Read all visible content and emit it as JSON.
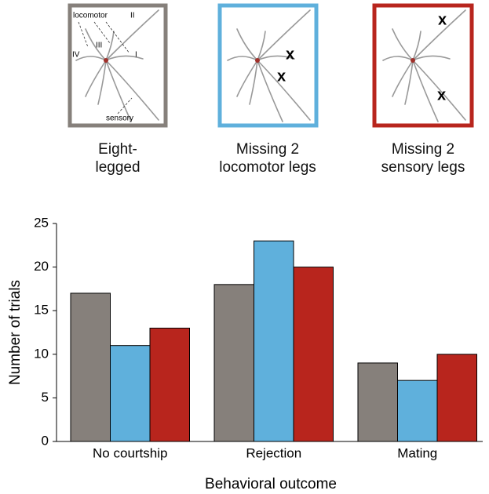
{
  "chart_data": {
    "type": "bar",
    "categories": [
      "No courtship",
      "Rejection",
      "Mating"
    ],
    "series": [
      {
        "name": "Eight-legged",
        "color": "#86807b",
        "values": [
          17,
          18,
          9
        ]
      },
      {
        "name": "Missing 2 locomotor legs",
        "color": "#5fb0dc",
        "values": [
          11,
          23,
          7
        ]
      },
      {
        "name": "Missing 2 sensory legs",
        "color": "#b8251d",
        "values": [
          13,
          20,
          10
        ]
      }
    ],
    "x_label": "Behavioral outcome",
    "y_label": "Number of trials",
    "ylim": [
      0,
      25
    ],
    "yticks": [
      0,
      5,
      10,
      15,
      20,
      25
    ],
    "illustration_labels": [
      "locomotor",
      "II",
      "III",
      "IV",
      "I",
      "sensory"
    ]
  }
}
